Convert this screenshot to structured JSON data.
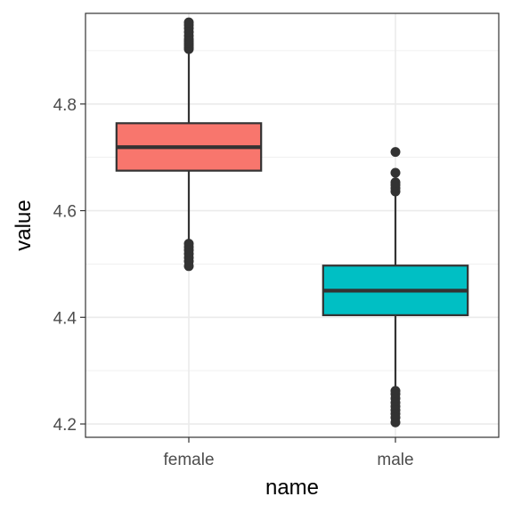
{
  "chart_data": {
    "type": "boxplot",
    "xlabel": "name",
    "ylabel": "value",
    "categories": [
      "female",
      "male"
    ],
    "ylim": [
      4.175,
      4.97
    ],
    "y_ticks": [
      4.2,
      4.4,
      4.6,
      4.8
    ],
    "y_tick_labels": [
      "4.2",
      "4.4",
      "4.6",
      "4.8"
    ],
    "grid": true,
    "legend": "none",
    "boxes": [
      {
        "name": "female",
        "color": "#F8766D",
        "q1": 4.675,
        "median": 4.719,
        "q3": 4.764,
        "whisker_low": 4.542,
        "whisker_high": 4.898,
        "outliers_high": [
          4.903,
          4.906,
          4.91,
          4.914,
          4.918,
          4.922,
          4.928,
          4.935,
          4.942,
          4.948,
          4.953
        ],
        "outliers_low": [
          4.538,
          4.532,
          4.526,
          4.519,
          4.512,
          4.505,
          4.496
        ]
      },
      {
        "name": "male",
        "color": "#00BFC4",
        "q1": 4.404,
        "median": 4.45,
        "q3": 4.497,
        "whisker_low": 4.266,
        "whisker_high": 4.632,
        "outliers_high": [
          4.636,
          4.642,
          4.648,
          4.653,
          4.671,
          4.71
        ],
        "outliers_low": [
          4.262,
          4.256,
          4.248,
          4.24,
          4.233,
          4.226,
          4.219,
          4.212,
          4.203
        ]
      }
    ]
  }
}
